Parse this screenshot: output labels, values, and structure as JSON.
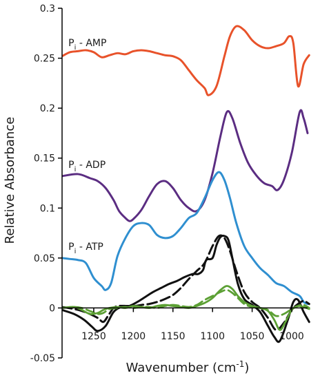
{
  "chart_data": {
    "type": "line",
    "xlabel_main": "Wavenumber (cm",
    "xlabel_sup": "-1",
    "xlabel_tail": ")",
    "ylabel": "Relative Absorbance",
    "xlim": [
      1290,
      980
    ],
    "ylim": [
      -0.05,
      0.3
    ],
    "x_reversed": true,
    "grid": false,
    "x_ticks": [
      {
        "value": 1250,
        "label": "1250"
      },
      {
        "value": 1200,
        "label": "1200"
      },
      {
        "value": 1150,
        "label": "1150"
      },
      {
        "value": 1100,
        "label": "1100"
      },
      {
        "value": 1050,
        "label": "1050"
      },
      {
        "value": 1000,
        "label": "1000"
      }
    ],
    "y_ticks": [
      {
        "value": 0.3,
        "label": "0.3"
      },
      {
        "value": 0.25,
        "label": "0.25"
      },
      {
        "value": 0.2,
        "label": "0.2"
      },
      {
        "value": 0.15,
        "label": "0.15"
      },
      {
        "value": 0.1,
        "label": "0.1"
      },
      {
        "value": 0.05,
        "label": "0.05"
      },
      {
        "value": 0,
        "label": "0"
      },
      {
        "value": -0.05,
        "label": "-0.05"
      }
    ],
    "series_labels": [
      {
        "main": "P",
        "sub": "i",
        "tail": " - AMP",
        "x": 1282,
        "y": 0.262
      },
      {
        "main": "P",
        "sub": "i",
        "tail": " - ADP",
        "x": 1282,
        "y": 0.14
      },
      {
        "main": "P",
        "sub": "i",
        "tail": " - ATP",
        "x": 1282,
        "y": 0.058
      }
    ],
    "series": [
      {
        "color": "#e8522a",
        "dash": "",
        "width": 3,
        "x": [
          1290,
          1280,
          1270,
          1260,
          1250,
          1240,
          1230,
          1220,
          1210,
          1200,
          1190,
          1180,
          1170,
          1160,
          1150,
          1140,
          1130,
          1120,
          1110,
          1105,
          1095,
          1085,
          1078,
          1070,
          1060,
          1050,
          1040,
          1030,
          1020,
          1010,
          1003,
          998,
          992,
          985,
          978
        ],
        "values": [
          0.252,
          0.256,
          0.257,
          0.258,
          0.256,
          0.251,
          0.253,
          0.255,
          0.254,
          0.257,
          0.258,
          0.257,
          0.255,
          0.253,
          0.252,
          0.248,
          0.238,
          0.228,
          0.22,
          0.213,
          0.222,
          0.252,
          0.272,
          0.282,
          0.278,
          0.268,
          0.262,
          0.26,
          0.262,
          0.265,
          0.272,
          0.265,
          0.222,
          0.244,
          0.253
        ]
      },
      {
        "color": "#5b2d82",
        "dash": "",
        "width": 3,
        "x": [
          1290,
          1270,
          1255,
          1245,
          1235,
          1225,
          1218,
          1210,
          1205,
          1200,
          1190,
          1180,
          1170,
          1160,
          1150,
          1140,
          1130,
          1120,
          1110,
          1100,
          1090,
          1082,
          1075,
          1065,
          1055,
          1045,
          1035,
          1025,
          1018,
          1010,
          1000,
          990,
          985,
          980
        ],
        "values": [
          0.132,
          0.134,
          0.13,
          0.127,
          0.12,
          0.108,
          0.097,
          0.09,
          0.087,
          0.089,
          0.098,
          0.112,
          0.124,
          0.127,
          0.12,
          0.108,
          0.1,
          0.097,
          0.108,
          0.135,
          0.172,
          0.196,
          0.19,
          0.165,
          0.145,
          0.133,
          0.125,
          0.122,
          0.118,
          0.128,
          0.155,
          0.196,
          0.19,
          0.175
        ]
      },
      {
        "color": "#2f8fd0",
        "dash": "",
        "width": 3,
        "x": [
          1290,
          1280,
          1270,
          1260,
          1250,
          1240,
          1235,
          1228,
          1220,
          1210,
          1200,
          1190,
          1180,
          1170,
          1160,
          1150,
          1140,
          1130,
          1120,
          1110,
          1100,
          1092,
          1085,
          1078,
          1070,
          1060,
          1050,
          1040,
          1030,
          1020,
          1010,
          1000,
          990,
          985,
          980
        ],
        "values": [
          0.05,
          0.049,
          0.048,
          0.045,
          0.03,
          0.022,
          0.018,
          0.025,
          0.052,
          0.07,
          0.082,
          0.085,
          0.083,
          0.073,
          0.07,
          0.072,
          0.08,
          0.09,
          0.095,
          0.11,
          0.128,
          0.136,
          0.128,
          0.11,
          0.085,
          0.062,
          0.05,
          0.04,
          0.033,
          0.025,
          0.022,
          0.016,
          0.012,
          0.006,
          0.004
        ]
      },
      {
        "color": "#111111",
        "dash": "",
        "width": 3,
        "x": [
          1290,
          1275,
          1262,
          1252,
          1245,
          1235,
          1225,
          1215,
          1205,
          1195,
          1185,
          1175,
          1165,
          1155,
          1145,
          1135,
          1125,
          1118,
          1112,
          1108,
          1100,
          1095,
          1090,
          1085,
          1080,
          1075,
          1068,
          1060,
          1050,
          1040,
          1030,
          1022,
          1015,
          1005,
          998,
          992,
          985,
          978
        ],
        "values": [
          -0.002,
          -0.006,
          -0.012,
          -0.019,
          -0.023,
          -0.018,
          -0.004,
          0.001,
          0.002,
          0.006,
          0.011,
          0.016,
          0.02,
          0.024,
          0.027,
          0.031,
          0.034,
          0.034,
          0.038,
          0.048,
          0.05,
          0.063,
          0.071,
          0.072,
          0.068,
          0.05,
          0.024,
          0.009,
          0.003,
          -0.004,
          -0.018,
          -0.029,
          -0.033,
          -0.012,
          0.006,
          0.008,
          -0.004,
          -0.014
        ]
      },
      {
        "color": "#111111",
        "dash": "14,6",
        "width": 3,
        "x": [
          1290,
          1275,
          1265,
          1255,
          1245,
          1238,
          1232,
          1225,
          1218,
          1208,
          1198,
          1190,
          1180,
          1170,
          1160,
          1150,
          1140,
          1130,
          1120,
          1110,
          1100,
          1092,
          1085,
          1078,
          1070,
          1060,
          1050,
          1040,
          1030,
          1020,
          1010,
          1000,
          992,
          985,
          978
        ],
        "values": [
          0.001,
          -0.001,
          -0.003,
          -0.006,
          -0.01,
          -0.014,
          -0.008,
          0.0,
          0.002,
          0.002,
          0.002,
          0.003,
          0.004,
          0.006,
          0.009,
          0.013,
          0.02,
          0.029,
          0.037,
          0.045,
          0.062,
          0.072,
          0.07,
          0.057,
          0.037,
          0.016,
          0.006,
          0.0,
          -0.01,
          -0.022,
          -0.015,
          -0.002,
          0.004,
          0.007,
          0.004
        ]
      },
      {
        "color": "#5ca034",
        "dash": "",
        "width": 2.8,
        "x": [
          1290,
          1275,
          1265,
          1255,
          1245,
          1238,
          1230,
          1220,
          1210,
          1200,
          1190,
          1180,
          1170,
          1160,
          1150,
          1140,
          1130,
          1120,
          1110,
          1100,
          1090,
          1082,
          1075,
          1068,
          1060,
          1050,
          1040,
          1030,
          1022,
          1015,
          1008,
          1000,
          992,
          985,
          978
        ],
        "values": [
          0.0,
          0.001,
          -0.002,
          -0.006,
          -0.005,
          -0.002,
          0.0,
          0.001,
          0.0,
          0.002,
          0.001,
          0.0,
          0.002,
          0.003,
          0.002,
          0.001,
          0.0,
          0.002,
          0.005,
          0.01,
          0.018,
          0.022,
          0.019,
          0.012,
          0.006,
          0.002,
          0.0,
          -0.003,
          -0.012,
          -0.022,
          -0.014,
          -0.002,
          0.002,
          0.001,
          -0.001
        ]
      },
      {
        "color": "#5ca034",
        "dash": "12,6",
        "width": 2.8,
        "x": [
          1290,
          1275,
          1265,
          1255,
          1245,
          1238,
          1230,
          1220,
          1210,
          1200,
          1190,
          1180,
          1170,
          1160,
          1150,
          1140,
          1130,
          1120,
          1110,
          1100,
          1090,
          1082,
          1075,
          1068,
          1060,
          1050,
          1040,
          1030,
          1020,
          1010,
          1000,
          992,
          985,
          978
        ],
        "values": [
          0.0,
          0.001,
          0.0,
          -0.003,
          -0.006,
          -0.005,
          -0.001,
          0.0,
          0.001,
          0.0,
          0.001,
          0.001,
          0.0,
          0.002,
          0.003,
          0.002,
          0.001,
          0.003,
          0.008,
          0.012,
          0.016,
          0.018,
          0.015,
          0.01,
          0.004,
          0.001,
          0.0,
          -0.002,
          -0.008,
          -0.006,
          -0.001,
          0.002,
          0.003,
          0.0
        ]
      }
    ]
  }
}
